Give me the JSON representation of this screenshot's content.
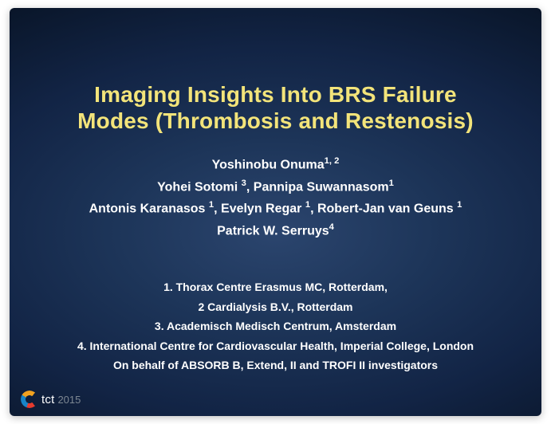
{
  "slide": {
    "background": {
      "outer_color": "#000000",
      "mid_color": "#122445",
      "center_color": "#2b456e"
    },
    "title": {
      "line1": "Imaging Insights Into BRS Failure",
      "line2": "Modes (Thrombosis and Restenosis)",
      "color": "#f3e47a",
      "fontsize": 28,
      "weight": 700
    },
    "authors": {
      "line1": "Yoshinobu Onuma",
      "line1_sup": "1, 2",
      "line2_a": "Yohei Sotomi ",
      "line2_a_sup": "3",
      "line2_b": ", Pannipa Suwannasom",
      "line2_b_sup": "1",
      "line3_a": "Antonis Karanasos ",
      "line3_a_sup": "1",
      "line3_b": ", Evelyn Regar ",
      "line3_b_sup": "1",
      "line3_c": ", Robert-Jan van Geuns ",
      "line3_c_sup": "1",
      "line4": "Patrick W. Serruys",
      "line4_sup": "4",
      "color": "#ffffff",
      "fontsize": 16
    },
    "affiliations": {
      "a1": "1. Thorax Centre Erasmus MC, Rotterdam,",
      "a2": "2 Cardialysis B.V., Rotterdam",
      "a3": "3. Academisch Medisch Centrum, Amsterdam",
      "a4": "4. International Centre for Cardiovascular Health, Imperial College, London",
      "behalf": "On behalf of ABSORB B, Extend, II and TROFI II investigators",
      "color": "#ffffff",
      "fontsize": 14
    },
    "logo": {
      "brand": "tct",
      "year": "2015",
      "brand_color": "#ffffff",
      "year_color": "#7d8792"
    }
  }
}
